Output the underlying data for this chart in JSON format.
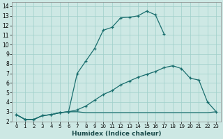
{
  "xlabel": "Humidex (Indice chaleur)",
  "bg_color": "#cde8e4",
  "grid_color": "#9ecfca",
  "line_color": "#1a6e6e",
  "xlim": [
    -0.5,
    23.5
  ],
  "ylim": [
    2,
    14.4
  ],
  "xticks": [
    0,
    1,
    2,
    3,
    4,
    5,
    6,
    7,
    8,
    9,
    10,
    11,
    12,
    13,
    14,
    15,
    16,
    17,
    18,
    19,
    20,
    21,
    22,
    23
  ],
  "yticks": [
    2,
    3,
    4,
    5,
    6,
    7,
    8,
    9,
    10,
    11,
    12,
    13,
    14
  ],
  "line1_x": [
    0,
    1,
    2,
    3,
    4,
    5,
    6,
    7,
    8,
    9,
    10,
    11,
    12,
    13,
    14,
    15,
    16,
    17
  ],
  "line1_y": [
    2.7,
    2.2,
    2.2,
    2.6,
    2.7,
    2.9,
    3.0,
    7.0,
    8.3,
    9.6,
    11.5,
    11.8,
    12.8,
    12.85,
    13.0,
    13.5,
    13.1,
    11.1
  ],
  "line2_x": [
    0,
    1,
    2,
    3,
    4,
    5,
    6,
    7,
    8,
    9,
    10,
    11,
    12,
    13,
    14,
    15,
    16,
    17,
    18,
    19,
    20,
    21,
    22,
    23
  ],
  "line2_y": [
    2.7,
    2.2,
    2.2,
    2.6,
    2.7,
    2.9,
    3.0,
    3.2,
    3.6,
    4.2,
    4.8,
    5.2,
    5.8,
    6.2,
    6.6,
    6.9,
    7.2,
    7.6,
    7.8,
    7.5,
    6.5,
    6.3,
    4.0,
    3.0
  ],
  "line3_x": [
    0,
    1,
    2,
    3,
    4,
    5,
    6,
    7,
    8,
    9,
    10,
    11,
    12,
    13,
    14,
    15,
    16,
    17,
    18,
    19,
    20,
    21,
    22,
    23
  ],
  "line3_y": [
    2.7,
    2.2,
    2.2,
    2.6,
    2.7,
    2.9,
    3.0,
    3.0,
    2.9,
    2.9,
    2.9,
    2.9,
    2.9,
    2.9,
    2.9,
    2.9,
    2.9,
    2.9,
    2.9,
    2.9,
    2.9,
    2.9,
    2.9,
    3.0
  ]
}
